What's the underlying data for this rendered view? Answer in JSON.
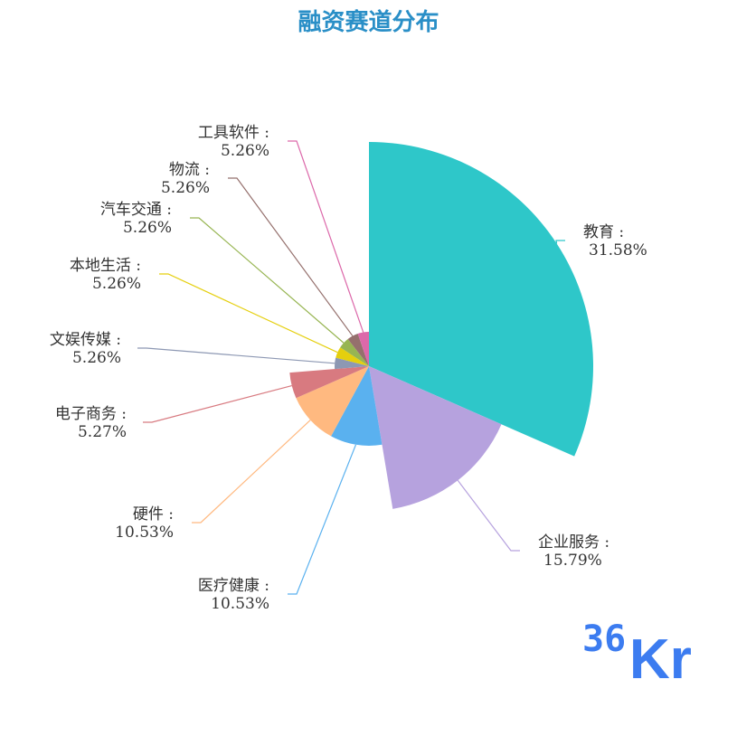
{
  "title": "融资赛道分布",
  "chart_data": {
    "type": "pie",
    "subtype": "rose",
    "title": "融资赛道分布",
    "slices": [
      {
        "name": "教育",
        "value": 31.58,
        "label": "31.58%",
        "color": "#2ec7c9"
      },
      {
        "name": "企业服务",
        "value": 15.79,
        "label": "15.79%",
        "color": "#b6a2de"
      },
      {
        "name": "医疗健康",
        "value": 10.53,
        "label": "10.53%",
        "color": "#5ab1ef"
      },
      {
        "name": "硬件",
        "value": 10.53,
        "label": "10.53%",
        "color": "#ffb980"
      },
      {
        "name": "电子商务",
        "value": 5.27,
        "label": "5.27%",
        "color": "#d87a80"
      },
      {
        "name": "文娱传媒",
        "value": 5.26,
        "label": "5.26%",
        "color": "#8d98b3"
      },
      {
        "name": "本地生活",
        "value": 5.26,
        "label": "5.26%",
        "color": "#e5cf0d"
      },
      {
        "name": "汽车交通",
        "value": 5.26,
        "label": "5.26%",
        "color": "#97b552"
      },
      {
        "name": "物流",
        "value": 5.26,
        "label": "5.26%",
        "color": "#95706d"
      },
      {
        "name": "工具软件",
        "value": 5.26,
        "label": "5.26%",
        "color": "#dc69aa"
      }
    ]
  },
  "logo": {
    "text_number": "36",
    "text_letters": "Kr",
    "color": "#3c7cf0"
  }
}
